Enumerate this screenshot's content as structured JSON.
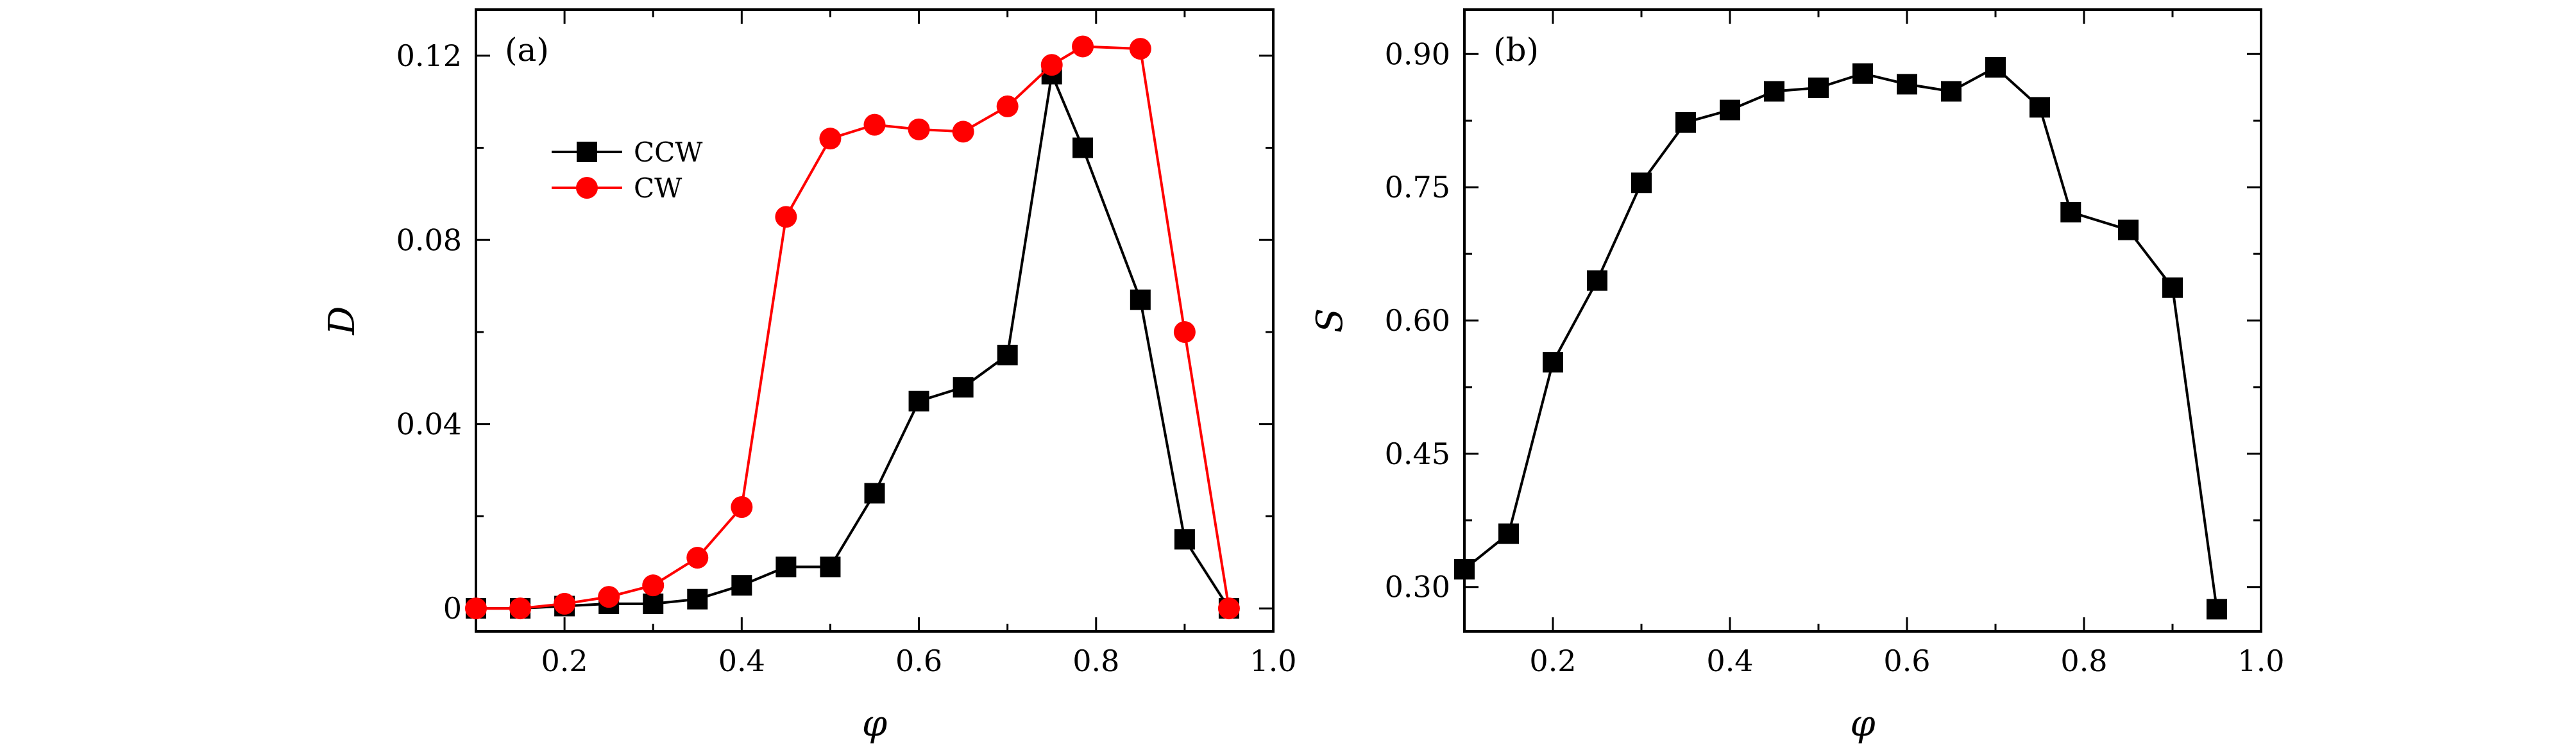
{
  "chart_data": [
    {
      "type": "line",
      "panel_label": "(a)",
      "xlabel": "φ",
      "ylabel": "D",
      "xlim": [
        0.1,
        1.0
      ],
      "ylim": [
        -0.005,
        0.13
      ],
      "xticks": [
        0.2,
        0.4,
        0.6,
        0.8,
        1.0
      ],
      "xtick_labels": [
        "0.2",
        "0.4",
        "0.6",
        "0.8",
        "1.0"
      ],
      "yticks": [
        0,
        0.04,
        0.08,
        0.12
      ],
      "ytick_labels": [
        "0",
        "0.04",
        "0.08",
        "0.12"
      ],
      "legend_position": "upper-left",
      "series": [
        {
          "name": "CCW",
          "color": "#000000",
          "marker": "square",
          "x": [
            0.1,
            0.15,
            0.2,
            0.25,
            0.3,
            0.35,
            0.4,
            0.45,
            0.5,
            0.55,
            0.6,
            0.65,
            0.7,
            0.75,
            0.785,
            0.85,
            0.9,
            0.95
          ],
          "y": [
            0.0,
            0.0,
            0.0005,
            0.001,
            0.001,
            0.002,
            0.005,
            0.009,
            0.009,
            0.025,
            0.045,
            0.048,
            0.055,
            0.116,
            0.1,
            0.067,
            0.015,
            0.0
          ]
        },
        {
          "name": "CW",
          "color": "#ff0000",
          "marker": "circle",
          "x": [
            0.1,
            0.15,
            0.2,
            0.25,
            0.3,
            0.35,
            0.4,
            0.45,
            0.5,
            0.55,
            0.6,
            0.65,
            0.7,
            0.75,
            0.785,
            0.85,
            0.9,
            0.95
          ],
          "y": [
            0.0,
            0.0,
            0.001,
            0.0025,
            0.005,
            0.011,
            0.022,
            0.085,
            0.102,
            0.105,
            0.104,
            0.1035,
            0.109,
            0.118,
            0.122,
            0.1215,
            0.06,
            0.0
          ]
        }
      ]
    },
    {
      "type": "line",
      "panel_label": "(b)",
      "xlabel": "φ",
      "ylabel": "S",
      "xlim": [
        0.1,
        1.0
      ],
      "ylim": [
        0.25,
        0.95
      ],
      "xticks": [
        0.2,
        0.4,
        0.6,
        0.8,
        1.0
      ],
      "xtick_labels": [
        "0.2",
        "0.4",
        "0.6",
        "0.8",
        "1.0"
      ],
      "yticks": [
        0.3,
        0.45,
        0.6,
        0.75,
        0.9
      ],
      "ytick_labels": [
        "0.30",
        "0.45",
        "0.60",
        "0.75",
        "0.90"
      ],
      "series": [
        {
          "color": "#000000",
          "marker": "square",
          "x": [
            0.1,
            0.15,
            0.2,
            0.25,
            0.3,
            0.35,
            0.4,
            0.45,
            0.5,
            0.55,
            0.6,
            0.65,
            0.7,
            0.75,
            0.785,
            0.85,
            0.9,
            0.95
          ],
          "y": [
            0.32,
            0.36,
            0.553,
            0.645,
            0.755,
            0.823,
            0.837,
            0.858,
            0.862,
            0.878,
            0.866,
            0.858,
            0.885,
            0.84,
            0.722,
            0.702,
            0.637,
            0.275
          ]
        }
      ]
    }
  ]
}
